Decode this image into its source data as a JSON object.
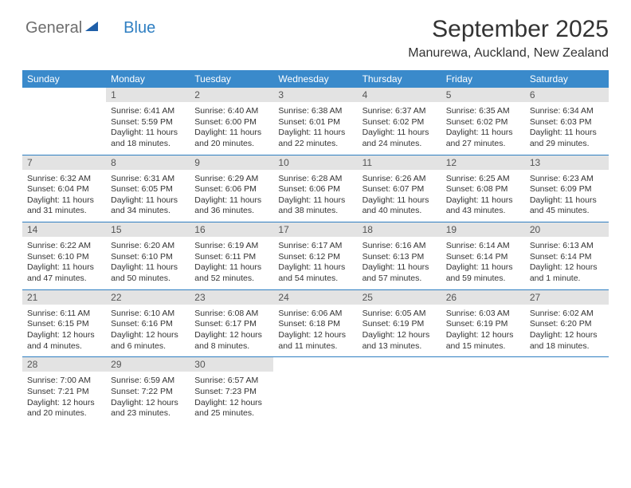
{
  "logo": {
    "part1": "General",
    "part2": "Blue"
  },
  "title": "September 2025",
  "location": "Manurewa, Auckland, New Zealand",
  "weekday_headers": [
    "Sunday",
    "Monday",
    "Tuesday",
    "Wednesday",
    "Thursday",
    "Friday",
    "Saturday"
  ],
  "header_bg": "#3a8acb",
  "header_fg": "#ffffff",
  "daynum_bg": "#e3e3e3",
  "rule_color": "#2f7fc2",
  "weeks": [
    [
      {
        "day": "",
        "sunrise": "",
        "sunset": "",
        "daylight": ""
      },
      {
        "day": "1",
        "sunrise": "Sunrise: 6:41 AM",
        "sunset": "Sunset: 5:59 PM",
        "daylight": "Daylight: 11 hours and 18 minutes."
      },
      {
        "day": "2",
        "sunrise": "Sunrise: 6:40 AM",
        "sunset": "Sunset: 6:00 PM",
        "daylight": "Daylight: 11 hours and 20 minutes."
      },
      {
        "day": "3",
        "sunrise": "Sunrise: 6:38 AM",
        "sunset": "Sunset: 6:01 PM",
        "daylight": "Daylight: 11 hours and 22 minutes."
      },
      {
        "day": "4",
        "sunrise": "Sunrise: 6:37 AM",
        "sunset": "Sunset: 6:02 PM",
        "daylight": "Daylight: 11 hours and 24 minutes."
      },
      {
        "day": "5",
        "sunrise": "Sunrise: 6:35 AM",
        "sunset": "Sunset: 6:02 PM",
        "daylight": "Daylight: 11 hours and 27 minutes."
      },
      {
        "day": "6",
        "sunrise": "Sunrise: 6:34 AM",
        "sunset": "Sunset: 6:03 PM",
        "daylight": "Daylight: 11 hours and 29 minutes."
      }
    ],
    [
      {
        "day": "7",
        "sunrise": "Sunrise: 6:32 AM",
        "sunset": "Sunset: 6:04 PM",
        "daylight": "Daylight: 11 hours and 31 minutes."
      },
      {
        "day": "8",
        "sunrise": "Sunrise: 6:31 AM",
        "sunset": "Sunset: 6:05 PM",
        "daylight": "Daylight: 11 hours and 34 minutes."
      },
      {
        "day": "9",
        "sunrise": "Sunrise: 6:29 AM",
        "sunset": "Sunset: 6:06 PM",
        "daylight": "Daylight: 11 hours and 36 minutes."
      },
      {
        "day": "10",
        "sunrise": "Sunrise: 6:28 AM",
        "sunset": "Sunset: 6:06 PM",
        "daylight": "Daylight: 11 hours and 38 minutes."
      },
      {
        "day": "11",
        "sunrise": "Sunrise: 6:26 AM",
        "sunset": "Sunset: 6:07 PM",
        "daylight": "Daylight: 11 hours and 40 minutes."
      },
      {
        "day": "12",
        "sunrise": "Sunrise: 6:25 AM",
        "sunset": "Sunset: 6:08 PM",
        "daylight": "Daylight: 11 hours and 43 minutes."
      },
      {
        "day": "13",
        "sunrise": "Sunrise: 6:23 AM",
        "sunset": "Sunset: 6:09 PM",
        "daylight": "Daylight: 11 hours and 45 minutes."
      }
    ],
    [
      {
        "day": "14",
        "sunrise": "Sunrise: 6:22 AM",
        "sunset": "Sunset: 6:10 PM",
        "daylight": "Daylight: 11 hours and 47 minutes."
      },
      {
        "day": "15",
        "sunrise": "Sunrise: 6:20 AM",
        "sunset": "Sunset: 6:10 PM",
        "daylight": "Daylight: 11 hours and 50 minutes."
      },
      {
        "day": "16",
        "sunrise": "Sunrise: 6:19 AM",
        "sunset": "Sunset: 6:11 PM",
        "daylight": "Daylight: 11 hours and 52 minutes."
      },
      {
        "day": "17",
        "sunrise": "Sunrise: 6:17 AM",
        "sunset": "Sunset: 6:12 PM",
        "daylight": "Daylight: 11 hours and 54 minutes."
      },
      {
        "day": "18",
        "sunrise": "Sunrise: 6:16 AM",
        "sunset": "Sunset: 6:13 PM",
        "daylight": "Daylight: 11 hours and 57 minutes."
      },
      {
        "day": "19",
        "sunrise": "Sunrise: 6:14 AM",
        "sunset": "Sunset: 6:14 PM",
        "daylight": "Daylight: 11 hours and 59 minutes."
      },
      {
        "day": "20",
        "sunrise": "Sunrise: 6:13 AM",
        "sunset": "Sunset: 6:14 PM",
        "daylight": "Daylight: 12 hours and 1 minute."
      }
    ],
    [
      {
        "day": "21",
        "sunrise": "Sunrise: 6:11 AM",
        "sunset": "Sunset: 6:15 PM",
        "daylight": "Daylight: 12 hours and 4 minutes."
      },
      {
        "day": "22",
        "sunrise": "Sunrise: 6:10 AM",
        "sunset": "Sunset: 6:16 PM",
        "daylight": "Daylight: 12 hours and 6 minutes."
      },
      {
        "day": "23",
        "sunrise": "Sunrise: 6:08 AM",
        "sunset": "Sunset: 6:17 PM",
        "daylight": "Daylight: 12 hours and 8 minutes."
      },
      {
        "day": "24",
        "sunrise": "Sunrise: 6:06 AM",
        "sunset": "Sunset: 6:18 PM",
        "daylight": "Daylight: 12 hours and 11 minutes."
      },
      {
        "day": "25",
        "sunrise": "Sunrise: 6:05 AM",
        "sunset": "Sunset: 6:19 PM",
        "daylight": "Daylight: 12 hours and 13 minutes."
      },
      {
        "day": "26",
        "sunrise": "Sunrise: 6:03 AM",
        "sunset": "Sunset: 6:19 PM",
        "daylight": "Daylight: 12 hours and 15 minutes."
      },
      {
        "day": "27",
        "sunrise": "Sunrise: 6:02 AM",
        "sunset": "Sunset: 6:20 PM",
        "daylight": "Daylight: 12 hours and 18 minutes."
      }
    ],
    [
      {
        "day": "28",
        "sunrise": "Sunrise: 7:00 AM",
        "sunset": "Sunset: 7:21 PM",
        "daylight": "Daylight: 12 hours and 20 minutes."
      },
      {
        "day": "29",
        "sunrise": "Sunrise: 6:59 AM",
        "sunset": "Sunset: 7:22 PM",
        "daylight": "Daylight: 12 hours and 23 minutes."
      },
      {
        "day": "30",
        "sunrise": "Sunrise: 6:57 AM",
        "sunset": "Sunset: 7:23 PM",
        "daylight": "Daylight: 12 hours and 25 minutes."
      },
      {
        "day": "",
        "sunrise": "",
        "sunset": "",
        "daylight": ""
      },
      {
        "day": "",
        "sunrise": "",
        "sunset": "",
        "daylight": ""
      },
      {
        "day": "",
        "sunrise": "",
        "sunset": "",
        "daylight": ""
      },
      {
        "day": "",
        "sunrise": "",
        "sunset": "",
        "daylight": ""
      }
    ]
  ]
}
